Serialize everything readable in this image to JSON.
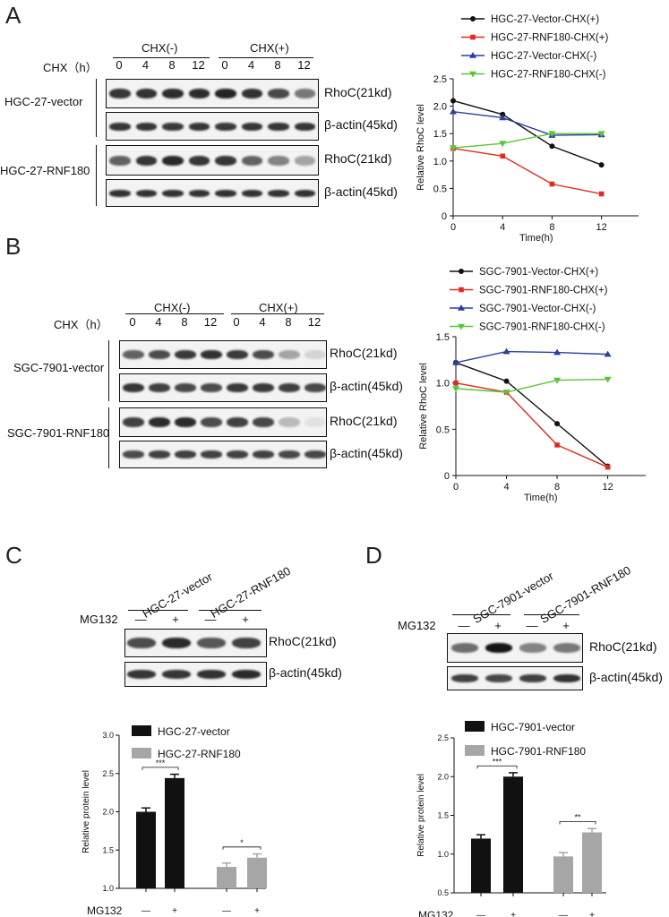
{
  "panelA": {
    "letter": "A",
    "cond_neg": "CHX(-)",
    "cond_pos": "CHX(+)",
    "chx_label": "CHX（h）",
    "times": [
      "0",
      "4",
      "8",
      "12",
      "0",
      "4",
      "8",
      "12"
    ],
    "row_labels": [
      "RhoC(21kd)",
      "β-actin(45kd)",
      "RhoC(21kd)",
      "β-actin(45kd)"
    ],
    "group1": "HGC-27-vector",
    "group2": "HGC-27-RNF180",
    "blot_rows": [
      [
        0.8,
        0.82,
        0.84,
        0.85,
        0.88,
        0.82,
        0.72,
        0.5
      ],
      [
        0.8,
        0.8,
        0.78,
        0.8,
        0.78,
        0.8,
        0.8,
        0.8
      ],
      [
        0.6,
        0.8,
        0.86,
        0.8,
        0.8,
        0.6,
        0.45,
        0.3
      ],
      [
        0.82,
        0.82,
        0.82,
        0.82,
        0.82,
        0.82,
        0.82,
        0.82
      ]
    ]
  },
  "panelB": {
    "letter": "B",
    "cond_neg": "CHX(-)",
    "cond_pos": "CHX(+)",
    "chx_label": "CHX（h）",
    "times": [
      "0",
      "4",
      "8",
      "12",
      "0",
      "4",
      "8",
      "12"
    ],
    "row_labels": [
      "RhoC(21kd)",
      "β-actin(45kd)",
      "RhoC(21kd)",
      "β-actin(45kd)"
    ],
    "group1": "SGC-7901-vector",
    "group2": "SGC-7901-RNF180",
    "blot_rows": [
      [
        0.6,
        0.7,
        0.78,
        0.82,
        0.78,
        0.7,
        0.3,
        0.08
      ],
      [
        0.8,
        0.75,
        0.72,
        0.7,
        0.78,
        0.78,
        0.75,
        0.72
      ],
      [
        0.75,
        0.85,
        0.85,
        0.7,
        0.75,
        0.72,
        0.2,
        0.02
      ],
      [
        0.7,
        0.75,
        0.75,
        0.75,
        0.75,
        0.75,
        0.72,
        0.72
      ]
    ]
  },
  "panelC": {
    "letter": "C",
    "lane_groups": [
      "HGC-27-vector",
      "HGC-27-RNF180"
    ],
    "mg132_label": "MG132",
    "mg132_signs": [
      "—",
      "+",
      "—",
      "+"
    ],
    "row_labels": [
      "RhoC(21kd)",
      "β-actin(45kd)"
    ],
    "blot_rows": [
      [
        0.7,
        0.85,
        0.65,
        0.75
      ],
      [
        0.8,
        0.8,
        0.82,
        0.85
      ]
    ]
  },
  "panelD": {
    "letter": "D",
    "lane_groups": [
      "SGC-7901-vector",
      "SGC-7901-RNF180"
    ],
    "mg132_label": "MG132",
    "mg132_signs": [
      "—",
      "+",
      "—",
      "+"
    ],
    "row_labels": [
      "RhoC(21kd)",
      "β-actin(45kd)"
    ],
    "blot_rows": [
      [
        0.55,
        0.95,
        0.45,
        0.5
      ],
      [
        0.75,
        0.72,
        0.75,
        0.82
      ]
    ]
  },
  "chart_data": [
    {
      "type": "line",
      "xlabel": "Time(h)",
      "ylabel": "Relative RhoC level",
      "x": [
        0,
        4,
        8,
        12
      ],
      "xlim": [
        0,
        15
      ],
      "ylim": [
        0,
        2.5
      ],
      "xticks": [
        0,
        4,
        8,
        12
      ],
      "yticks": [
        0,
        0.5,
        1.0,
        1.5,
        2.0,
        2.5
      ],
      "legend_position": "top-right",
      "series": [
        {
          "name": "HGC-27-Vector-CHX(+)",
          "color": "#111111",
          "marker": "circle",
          "values": [
            2.1,
            1.85,
            1.27,
            0.93
          ]
        },
        {
          "name": "HGC-27-RNF180-CHX(+)",
          "color": "#e02b20",
          "marker": "square",
          "values": [
            1.23,
            1.09,
            0.58,
            0.4
          ]
        },
        {
          "name": "HGC-27-Vector-CHX(-)",
          "color": "#2b3f9e",
          "marker": "triangle-up",
          "values": [
            1.9,
            1.79,
            1.47,
            1.48
          ]
        },
        {
          "name": "HGC-27-RNF180-CHX(-)",
          "color": "#5cc43a",
          "marker": "triangle-down",
          "values": [
            1.24,
            1.32,
            1.5,
            1.5
          ]
        }
      ]
    },
    {
      "type": "line",
      "xlabel": "Time(h)",
      "ylabel": "Relative RhoC level",
      "x": [
        0,
        4,
        8,
        12
      ],
      "xlim": [
        0,
        15
      ],
      "ylim": [
        0,
        1.5
      ],
      "xticks": [
        0,
        4,
        8,
        12
      ],
      "yticks": [
        0,
        0.5,
        1.0,
        1.5
      ],
      "legend_position": "top-right",
      "series": [
        {
          "name": "SGC-7901-Vector-CHX(+)",
          "color": "#111111",
          "marker": "circle",
          "values": [
            1.22,
            1.02,
            0.56,
            0.1
          ]
        },
        {
          "name": "SGC-7901-RNF180-CHX(+)",
          "color": "#e02b20",
          "marker": "square",
          "values": [
            1.0,
            0.9,
            0.33,
            0.09
          ]
        },
        {
          "name": "SGC-7901-Vector-CHX(-)",
          "color": "#2b3f9e",
          "marker": "triangle-up",
          "values": [
            1.22,
            1.34,
            1.33,
            1.31
          ]
        },
        {
          "name": "SGC-7901-RNF180-CHX(-)",
          "color": "#5cc43a",
          "marker": "triangle-down",
          "values": [
            0.94,
            0.9,
            1.03,
            1.04
          ]
        }
      ]
    },
    {
      "type": "bar",
      "ylabel": "Relative protein level",
      "ylim": [
        1.0,
        3.0
      ],
      "yticks": [
        1.0,
        1.5,
        2.0,
        2.5,
        3.0
      ],
      "xlabel": "MG132",
      "x_signs": [
        "—",
        "+",
        "—",
        "+"
      ],
      "categories": [
        "HGC-27-vector —",
        "HGC-27-vector +",
        "HGC-27-RNF180 —",
        "HGC-27-RNF180 +"
      ],
      "values": [
        2.0,
        2.44,
        1.28,
        1.4
      ],
      "errors": [
        0.05,
        0.05,
        0.05,
        0.05
      ],
      "colors": [
        "#111111",
        "#111111",
        "#a6a6a6",
        "#a6a6a6"
      ],
      "legend": [
        {
          "name": "HGC-27-vector",
          "color": "#111111"
        },
        {
          "name": "HGC-27-RNF180",
          "color": "#a6a6a6"
        }
      ],
      "significance": [
        {
          "pair": [
            0,
            1
          ],
          "label": "***"
        },
        {
          "pair": [
            2,
            3
          ],
          "label": "*"
        }
      ]
    },
    {
      "type": "bar",
      "ylabel": "Relative protein level",
      "ylim": [
        0.5,
        2.5
      ],
      "yticks": [
        0.5,
        1.0,
        1.5,
        2.0,
        2.5
      ],
      "xlabel": "MG132",
      "x_signs": [
        "—",
        "+",
        "—",
        "+"
      ],
      "categories": [
        "HGC-7901-vector —",
        "HGC-7901-vector +",
        "HGC-7901-RNF180 —",
        "HGC-7901-RNF180 +"
      ],
      "values": [
        1.2,
        2.0,
        0.97,
        1.28
      ],
      "errors": [
        0.05,
        0.05,
        0.05,
        0.05
      ],
      "colors": [
        "#111111",
        "#111111",
        "#a6a6a6",
        "#a6a6a6"
      ],
      "legend": [
        {
          "name": "HGC-7901-vector",
          "color": "#111111"
        },
        {
          "name": "HGC-7901-RNF180",
          "color": "#a6a6a6"
        }
      ],
      "significance": [
        {
          "pair": [
            0,
            1
          ],
          "label": "***"
        },
        {
          "pair": [
            2,
            3
          ],
          "label": "**"
        }
      ]
    }
  ]
}
